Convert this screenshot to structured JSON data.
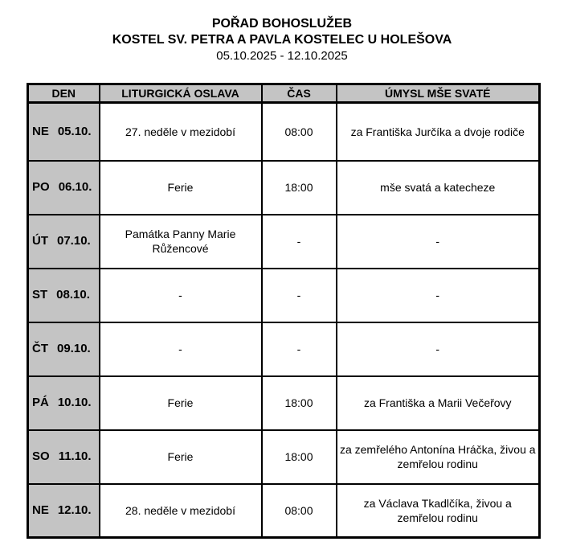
{
  "header": {
    "title": "POŘAD BOHOSLUŽEB",
    "subtitle": "KOSTEL SV. PETRA A PAVLA KOSTELEC U HOLEŠOVA",
    "date_range": "05.10.2025 - 12.10.2025"
  },
  "table": {
    "columns": [
      "DEN",
      "LITURGICKÁ OSLAVA",
      "ČAS",
      "ÚMYSL MŠE SVATÉ"
    ],
    "rows": [
      {
        "day": "NE",
        "date": "05.10.",
        "celebration": "27. neděle v mezidobí",
        "time": "08:00",
        "intention": "za Františka Jurčíka a dvoje rodiče"
      },
      {
        "day": "PO",
        "date": "06.10.",
        "celebration": "Ferie",
        "time": "18:00",
        "intention": "mše svatá a katecheze"
      },
      {
        "day": "ÚT",
        "date": "07.10.",
        "celebration": "Památka Panny Marie Růžencové",
        "time": "-",
        "intention": "-"
      },
      {
        "day": "ST",
        "date": "08.10.",
        "celebration": "-",
        "time": "-",
        "intention": "-"
      },
      {
        "day": "ČT",
        "date": "09.10.",
        "celebration": "-",
        "time": "-",
        "intention": "-"
      },
      {
        "day": "PÁ",
        "date": "10.10.",
        "celebration": "Ferie",
        "time": "18:00",
        "intention": "za Františka a Marii Večeřovy"
      },
      {
        "day": "SO",
        "date": "11.10.",
        "celebration": "Ferie",
        "time": "18:00",
        "intention": "za zemřelého Antonína Hráčka, živou a zemřelou rodinu"
      },
      {
        "day": "NE",
        "date": "12.10.",
        "celebration": "28. neděle v mezidobí",
        "time": "08:00",
        "intention": "za Václava Tkadlčíka, živou a zemřelou rodinu"
      }
    ]
  },
  "colors": {
    "header_bg": "#c4c4c4",
    "day_column_bg": "#c4c4c4",
    "border": "#000000",
    "page_bg": "#ffffff"
  }
}
